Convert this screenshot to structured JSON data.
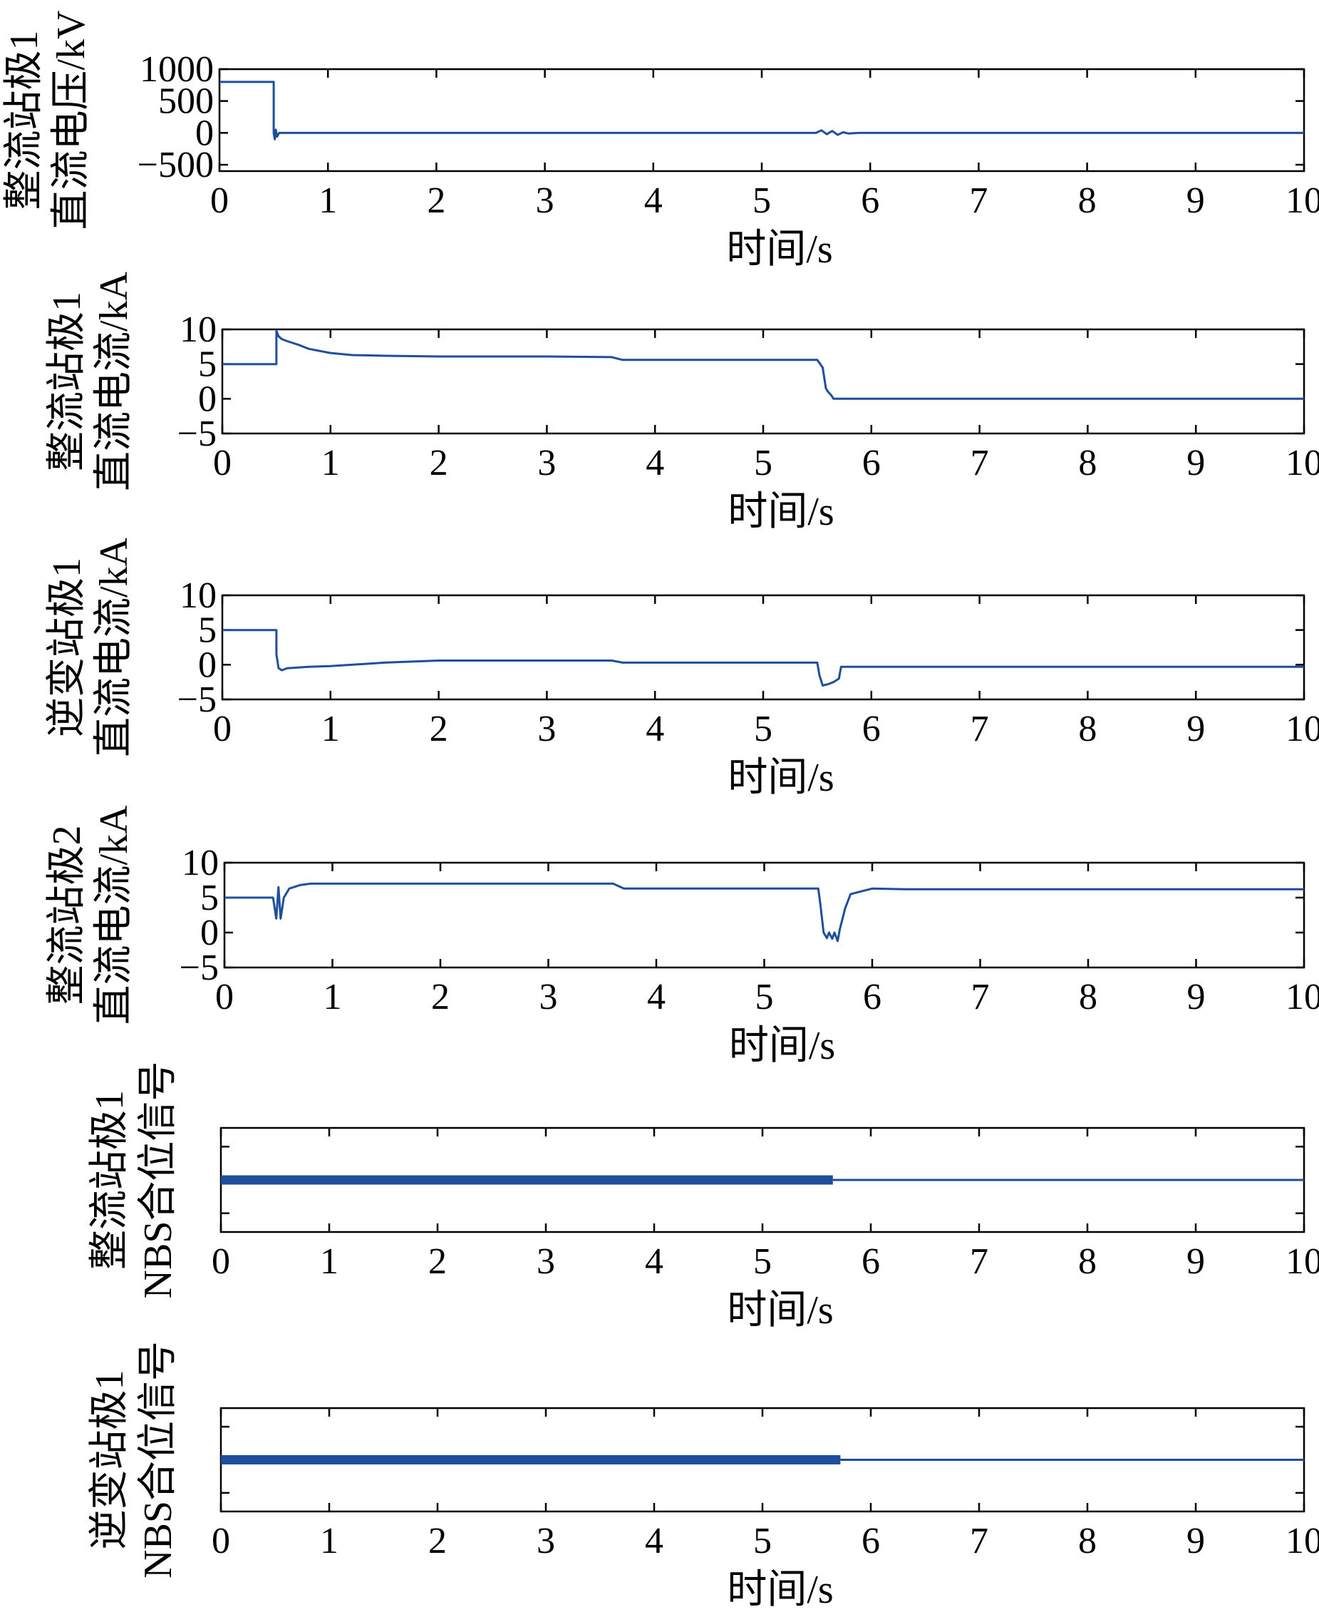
{
  "chart_data": [
    {
      "type": "line",
      "ylabel": [
        "整流站极1",
        "直流电压/kV"
      ],
      "xlabel": "时间/s",
      "xlim": [
        0,
        10
      ],
      "ylim": [
        -600,
        1000
      ],
      "yticks": [
        -500,
        0,
        500,
        1000
      ],
      "xticks": [
        0,
        1,
        2,
        3,
        4,
        5,
        6,
        7,
        8,
        9,
        10
      ],
      "color": "#1f4e9e",
      "series": [
        {
          "x": [
            0,
            0.5,
            0.5,
            0.51,
            0.52,
            0.53,
            0.55,
            0.6,
            1.0,
            5.5,
            5.55,
            5.6,
            5.65,
            5.7,
            5.75,
            5.8,
            5.9,
            10
          ],
          "y": [
            800,
            800,
            0,
            -100,
            50,
            -60,
            0,
            0,
            0,
            0,
            40,
            -20,
            30,
            -30,
            10,
            -10,
            0,
            0
          ]
        }
      ]
    },
    {
      "type": "line",
      "ylabel": [
        "整流站极1",
        "直流电流/kA"
      ],
      "xlabel": "时间/s",
      "xlim": [
        0,
        10
      ],
      "ylim": [
        -5,
        10
      ],
      "yticks": [
        -5,
        0,
        5,
        10
      ],
      "xticks": [
        0,
        1,
        2,
        3,
        4,
        5,
        6,
        7,
        8,
        9,
        10
      ],
      "color": "#1f4e9e",
      "series": [
        {
          "x": [
            0,
            0.5,
            0.5,
            0.52,
            0.55,
            0.6,
            0.7,
            0.8,
            1.0,
            1.2,
            1.5,
            2.0,
            3.0,
            3.6,
            3.7,
            4.0,
            5.0,
            5.5,
            5.55,
            5.58,
            5.6,
            5.63,
            5.65,
            6.0,
            10
          ],
          "y": [
            5,
            5,
            9.8,
            9,
            8.6,
            8.3,
            7.8,
            7.2,
            6.6,
            6.3,
            6.2,
            6.1,
            6.1,
            6.0,
            5.6,
            5.6,
            5.6,
            5.6,
            4.5,
            1.5,
            1.0,
            0.5,
            0,
            0,
            0
          ]
        }
      ]
    },
    {
      "type": "line",
      "ylabel": [
        "逆变站极1",
        "直流电流/kA"
      ],
      "xlabel": "时间/s",
      "xlim": [
        0,
        10
      ],
      "ylim": [
        -5,
        10
      ],
      "yticks": [
        -5,
        0,
        5,
        10
      ],
      "xticks": [
        0,
        1,
        2,
        3,
        4,
        5,
        6,
        7,
        8,
        9,
        10
      ],
      "color": "#1f4e9e",
      "series": [
        {
          "x": [
            0,
            0.5,
            0.5,
            0.52,
            0.55,
            0.6,
            0.8,
            1.0,
            1.5,
            2.0,
            3.0,
            3.6,
            3.7,
            4.0,
            5.0,
            5.5,
            5.52,
            5.55,
            5.6,
            5.65,
            5.7,
            5.72,
            6.0,
            10
          ],
          "y": [
            5,
            5,
            1.5,
            -0.5,
            -0.8,
            -0.5,
            -0.3,
            -0.2,
            0.3,
            0.6,
            0.6,
            0.6,
            0.3,
            0.3,
            0.3,
            0.3,
            -1.5,
            -3.0,
            -2.8,
            -2.5,
            -2.0,
            -0.3,
            -0.3,
            -0.3
          ]
        }
      ]
    },
    {
      "type": "line",
      "ylabel": [
        "整流站极2",
        "直流电流/kA"
      ],
      "xlabel": "时间/s",
      "xlim": [
        0,
        10
      ],
      "ylim": [
        -5,
        10
      ],
      "yticks": [
        -5,
        0,
        5,
        10
      ],
      "xticks": [
        0,
        1,
        2,
        3,
        4,
        5,
        6,
        7,
        8,
        9,
        10
      ],
      "color": "#1f4e9e",
      "series": [
        {
          "x": [
            0,
            0.45,
            0.48,
            0.5,
            0.52,
            0.55,
            0.6,
            0.7,
            0.8,
            1.0,
            3.6,
            3.7,
            5.5,
            5.52,
            5.55,
            5.58,
            5.6,
            5.63,
            5.65,
            5.68,
            5.7,
            5.75,
            5.8,
            6.0,
            6.3,
            10
          ],
          "y": [
            5,
            5,
            2.0,
            6.5,
            2.0,
            5.0,
            6.3,
            6.8,
            7.0,
            7.0,
            7.0,
            6.3,
            6.3,
            4.0,
            0,
            -0.8,
            0,
            -0.9,
            0,
            -1.2,
            0.5,
            3.5,
            5.5,
            6.3,
            6.2,
            6.2
          ]
        }
      ]
    },
    {
      "type": "line",
      "ylabel": [
        "整流站极1",
        "NBS合位信号"
      ],
      "xlabel": "时间/s",
      "xlim": [
        0,
        10
      ],
      "ylim": [
        0,
        1
      ],
      "yticks": [],
      "xticks": [
        0,
        1,
        2,
        3,
        4,
        5,
        6,
        7,
        8,
        9,
        10
      ],
      "color": "#1f4e9e",
      "series": [
        {
          "x": [
            0,
            5.65
          ],
          "y": [
            0.5,
            0.5
          ],
          "style": "thick"
        },
        {
          "x": [
            5.65,
            10
          ],
          "y": [
            0.5,
            0.5
          ],
          "style": "thin"
        }
      ]
    },
    {
      "type": "line",
      "ylabel": [
        "逆变站极1",
        "NBS合位信号"
      ],
      "xlabel": "时间/s",
      "xlim": [
        0,
        10
      ],
      "ylim": [
        0,
        1
      ],
      "yticks": [],
      "xticks": [
        0,
        1,
        2,
        3,
        4,
        5,
        6,
        7,
        8,
        9,
        10
      ],
      "color": "#1f4e9e",
      "series": [
        {
          "x": [
            0,
            5.72
          ],
          "y": [
            0.5,
            0.5
          ],
          "style": "thick"
        },
        {
          "x": [
            5.72,
            10
          ],
          "y": [
            0.5,
            0.5
          ],
          "style": "thin"
        }
      ]
    }
  ]
}
